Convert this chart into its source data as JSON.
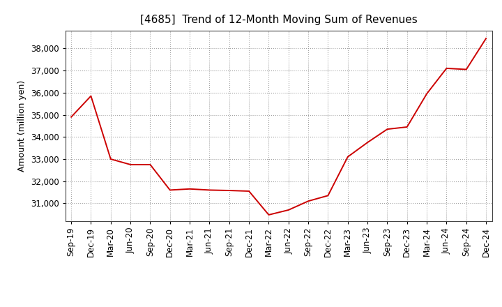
{
  "title": "[4685]  Trend of 12-Month Moving Sum of Revenues",
  "ylabel": "Amount (million yen)",
  "line_color": "#cc0000",
  "background_color": "#ffffff",
  "grid_color": "#999999",
  "xlabels": [
    "Sep-19",
    "Dec-19",
    "Mar-20",
    "Jun-20",
    "Sep-20",
    "Dec-20",
    "Mar-21",
    "Jun-21",
    "Sep-21",
    "Dec-21",
    "Mar-22",
    "Jun-22",
    "Sep-22",
    "Dec-22",
    "Mar-23",
    "Jun-23",
    "Sep-23",
    "Dec-23",
    "Mar-24",
    "Jun-24",
    "Sep-24",
    "Dec-24"
  ],
  "values": [
    34900,
    35850,
    33000,
    32750,
    32750,
    31600,
    31650,
    31600,
    31580,
    31550,
    30480,
    30700,
    31100,
    31350,
    33100,
    33750,
    34350,
    34450,
    35950,
    37100,
    37050,
    38450
  ],
  "ylim_min": 30200,
  "ylim_max": 38800,
  "yticks": [
    31000,
    32000,
    33000,
    34000,
    35000,
    36000,
    37000,
    38000
  ],
  "title_fontsize": 11,
  "axis_label_fontsize": 9,
  "tick_fontsize": 8.5
}
